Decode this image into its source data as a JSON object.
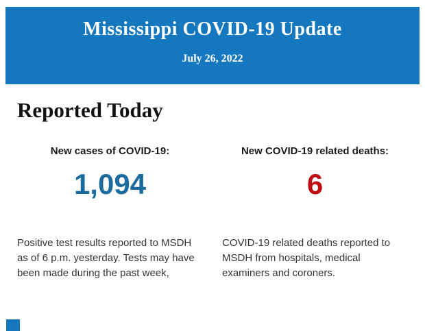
{
  "page": {
    "background_color": "#FFFFFF"
  },
  "header": {
    "title": "Mississippi COVID-19 Update",
    "date": "July 26, 2022",
    "background_color": "#1577BE",
    "text_color": "#FFFFFF"
  },
  "report": {
    "heading": "Reported Today",
    "heading_color": "#111111",
    "stats": [
      {
        "label": "New cases of COVID-19:",
        "value": "1,094",
        "value_color": "#1B6C9E",
        "description": "Positive test results reported to MSDH as of 6 p.m. yesterday. Tests may have been made during the past week,"
      },
      {
        "label": "New COVID-19 related deaths:",
        "value": "6",
        "value_color": "#C00F12",
        "description": "COVID-19 related deaths reported to MSDH from hospitals, medical examiners and coroners."
      }
    ]
  },
  "footer": {
    "partial_next_section_color": "#1577BE"
  }
}
